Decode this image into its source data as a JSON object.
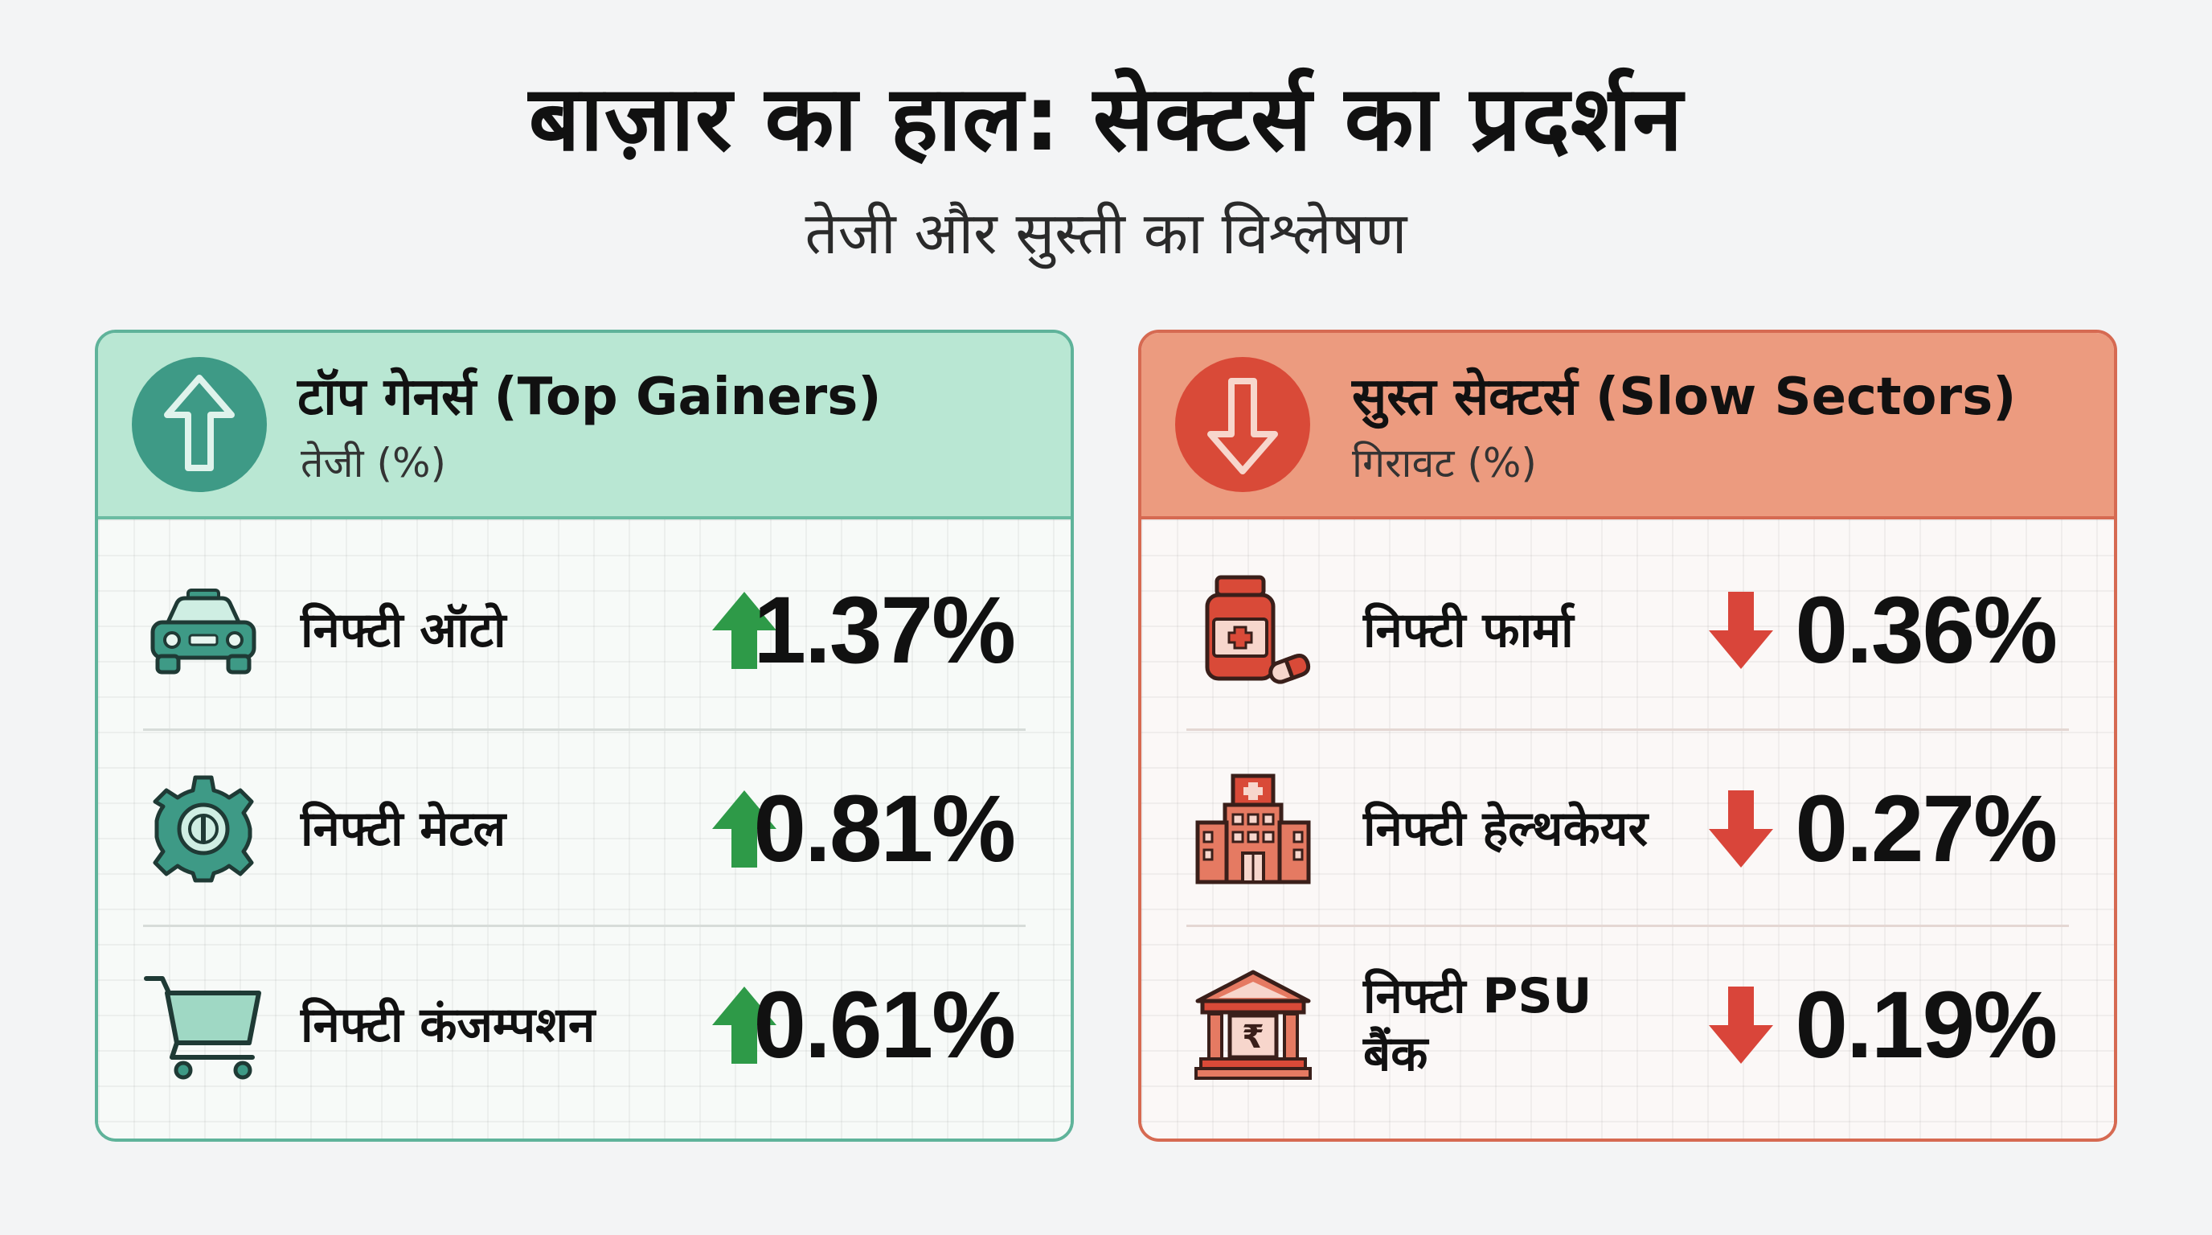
{
  "title": "बाज़ार का हाल: सेक्टर्स का प्रदर्शन",
  "subtitle": "तेजी और सुस्ती का विश्लेषण",
  "colors": {
    "gain_accent": "#3e9a86",
    "gain_arrow": "#2e9a48",
    "loss_accent": "#d94a38",
    "loss_arrow": "#d9453a"
  },
  "gainers": {
    "title": "टॉप गेनर्स (Top Gainers)",
    "subtitle": "तेजी (%)",
    "icon": "arrow-up-circle-icon",
    "items": [
      {
        "label": "निफ्टी ऑटो",
        "value": "1.37%",
        "icon": "car-icon"
      },
      {
        "label": "निफ्टी मेटल",
        "value": "0.81%",
        "icon": "gear-icon"
      },
      {
        "label": "निफ्टी कंजम्पशन",
        "value": "0.61%",
        "icon": "shopping-cart-icon"
      }
    ]
  },
  "losers": {
    "title": "सुस्त सेक्टर्स (Slow Sectors)",
    "subtitle": "गिरावट (%)",
    "icon": "arrow-down-circle-icon",
    "items": [
      {
        "label": "निफ्टी फार्मा",
        "value": "0.36%",
        "icon": "medicine-bottle-icon"
      },
      {
        "label": "निफ्टी हेल्थकेयर",
        "value": "0.27%",
        "icon": "hospital-icon"
      },
      {
        "label": "निफ्टी PSU बैंक",
        "value": "0.19%",
        "icon": "bank-icon"
      }
    ]
  }
}
